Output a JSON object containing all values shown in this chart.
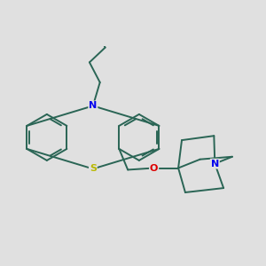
{
  "background_color": "#e0e0e0",
  "bond_color": "#2a6555",
  "bond_width": 1.4,
  "atom_colors": {
    "S": "#b8b800",
    "N_blue": "#0000ee",
    "O": "#dd0000"
  },
  "figsize": [
    3.0,
    3.0
  ],
  "dpi": 100
}
